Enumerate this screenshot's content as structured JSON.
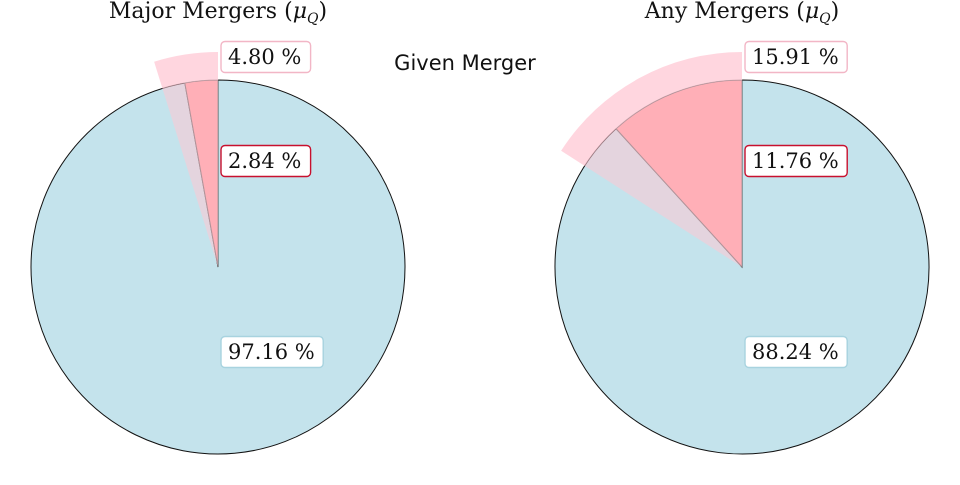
{
  "center_label": "Given Merger",
  "colors": {
    "quiescent": "#c4e3ec",
    "merger": "#ff9196",
    "merger_edge": "#c8102e",
    "given_merger": "#ffc8d4",
    "given_merger_box_edge": "#f2b6c6",
    "quiescent_box_edge": "#a8d3df"
  },
  "chart_data": [
    {
      "type": "pie",
      "title": "Major Mergers (",
      "title_math": "μ",
      "title_sub": "Q",
      "title_close": ")",
      "slices": [
        {
          "label": "97.16 %",
          "value": 97.16,
          "category": "quiescent"
        },
        {
          "label": "2.84 %",
          "value": 2.84,
          "category": "merger"
        }
      ],
      "given_merger": {
        "label": "4.80 %",
        "value": 4.8
      }
    },
    {
      "type": "pie",
      "title": "Any Mergers (",
      "title_math": "μ",
      "title_sub": "Q",
      "title_close": ")",
      "slices": [
        {
          "label": "88.24 %",
          "value": 88.24,
          "category": "quiescent"
        },
        {
          "label": "11.76 %",
          "value": 11.76,
          "category": "merger"
        }
      ],
      "given_merger": {
        "label": "15.91 %",
        "value": 15.91
      }
    }
  ]
}
